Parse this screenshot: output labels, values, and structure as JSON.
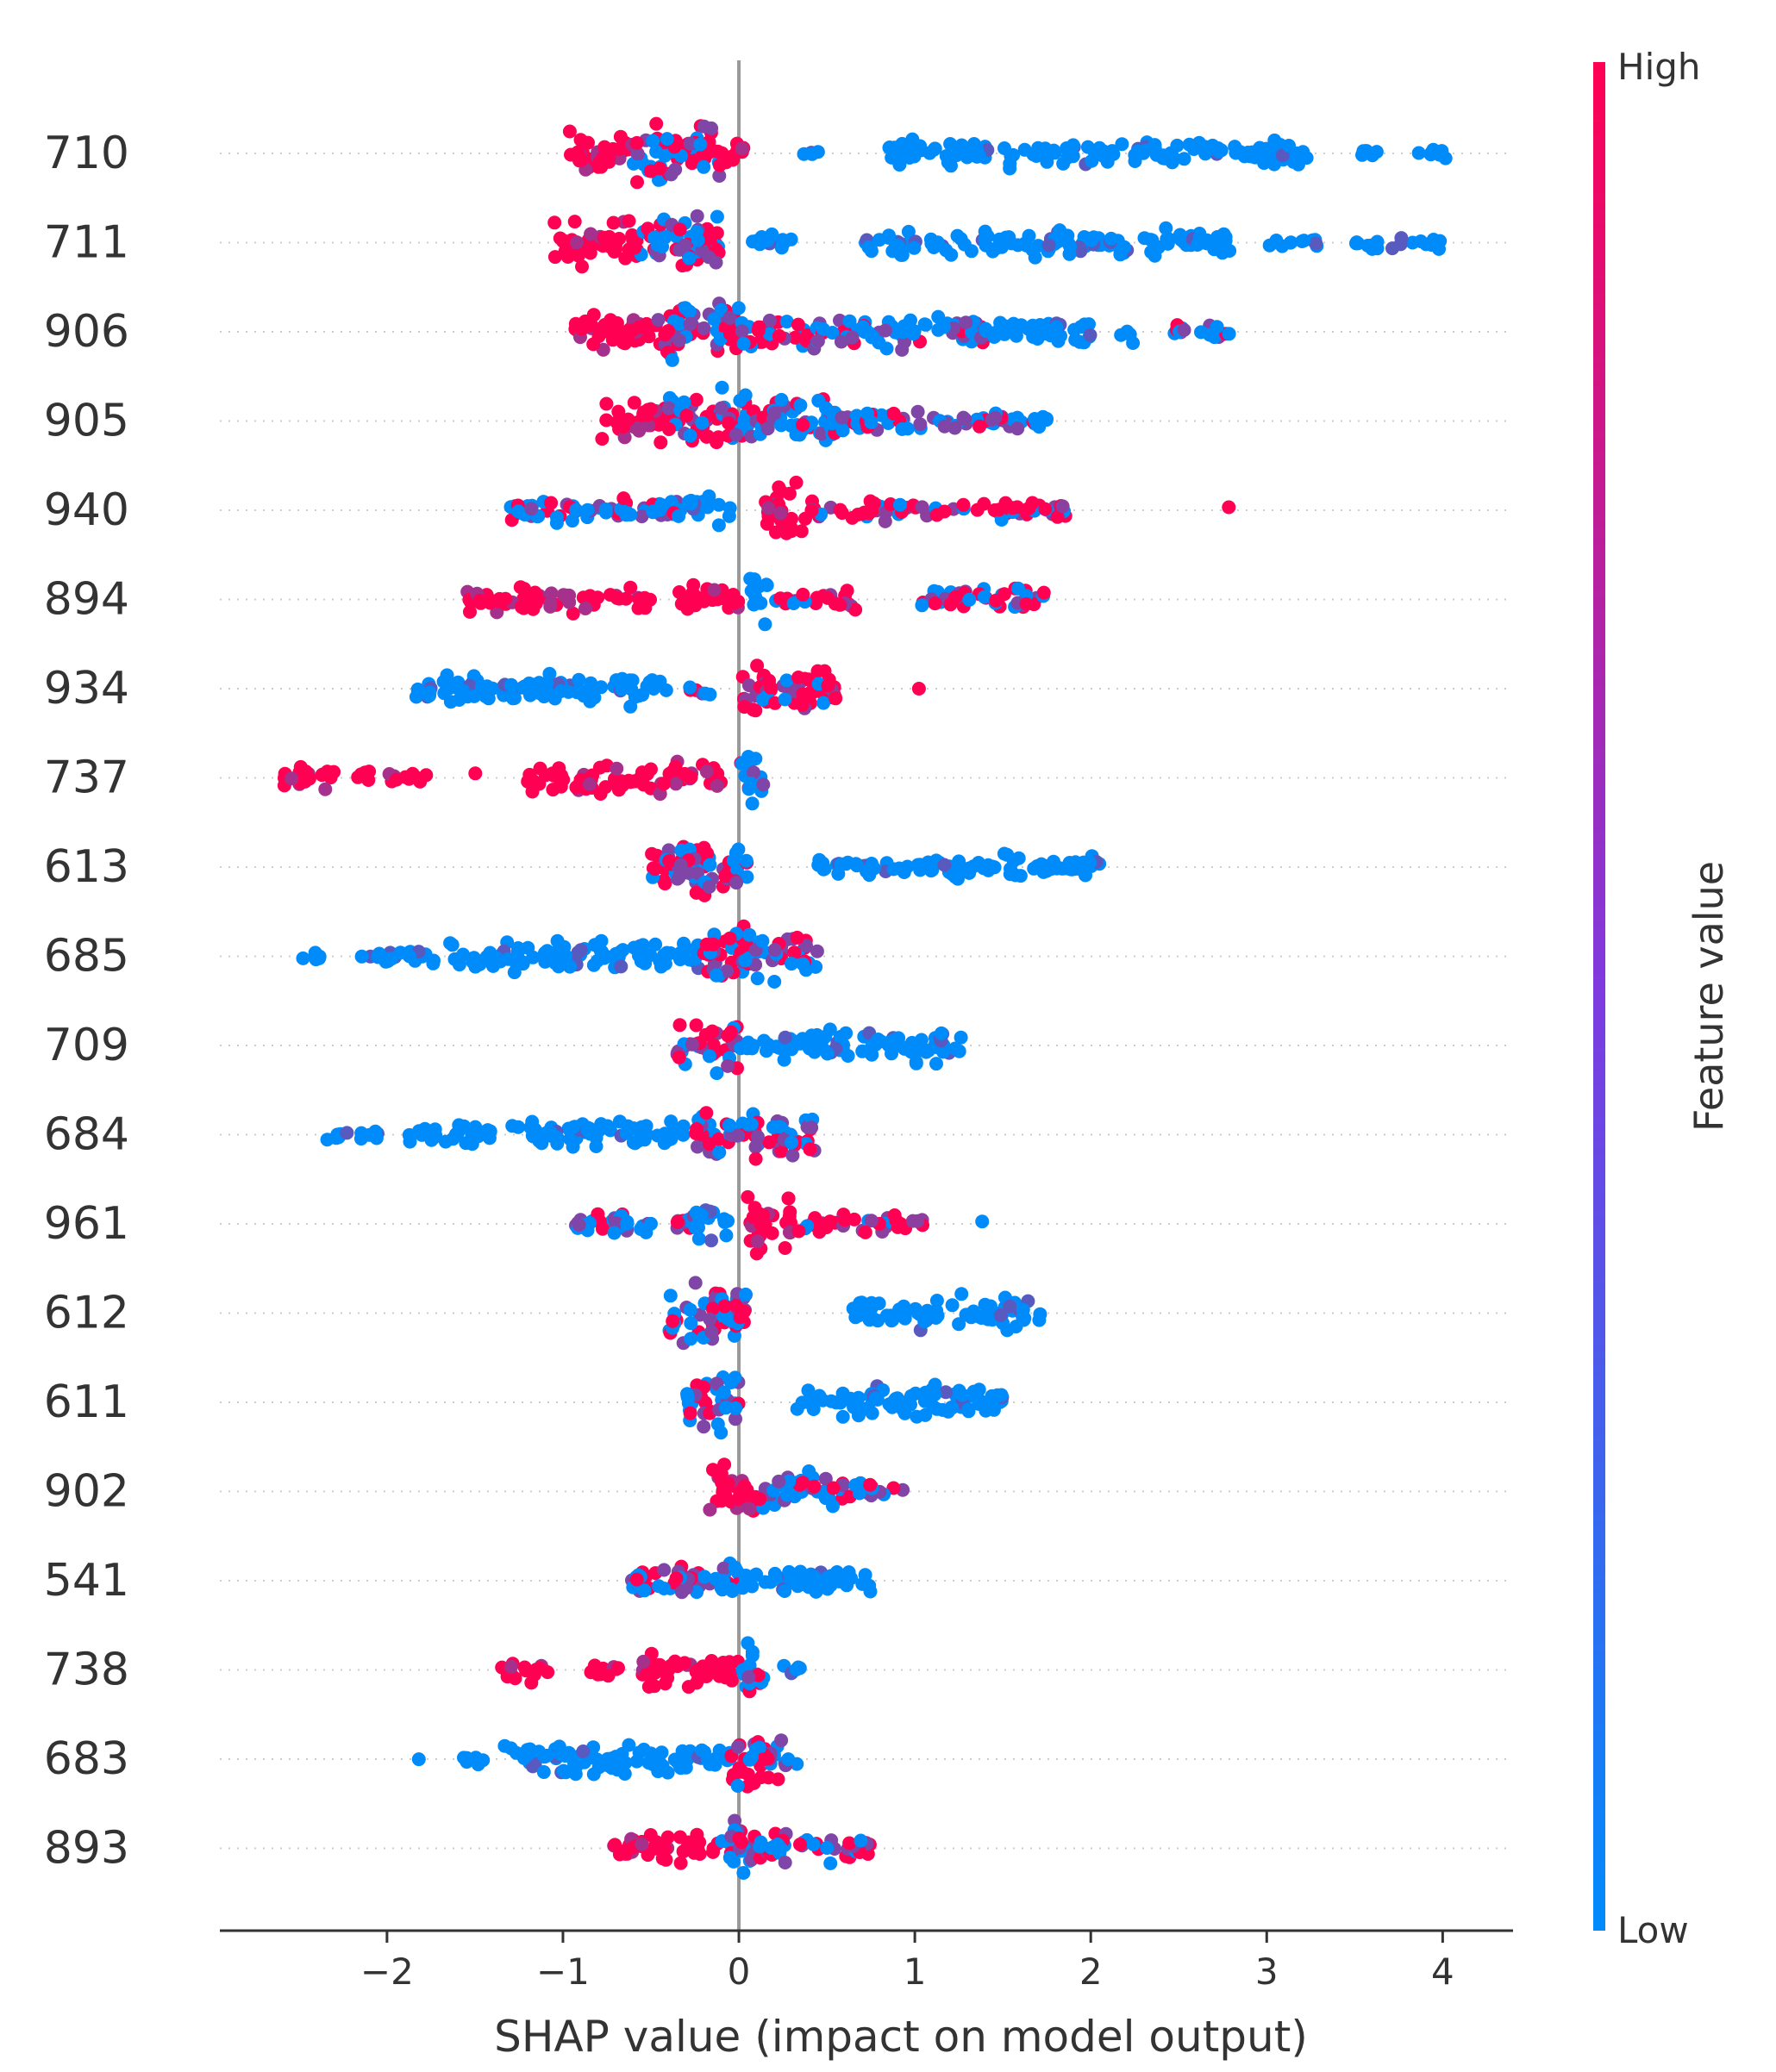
{
  "chart_data": {
    "type": "scatter",
    "subtype": "shap-beeswarm",
    "xlabel": "SHAP value (impact on model output)",
    "ylabel": "",
    "xlim": [
      -2.95,
      4.4
    ],
    "x_ticks": [
      {
        "value": -2,
        "label": "−2"
      },
      {
        "value": -1,
        "label": "−1"
      },
      {
        "value": 0,
        "label": "0"
      },
      {
        "value": 1,
        "label": "1"
      },
      {
        "value": 2,
        "label": "2"
      },
      {
        "value": 3,
        "label": "3"
      },
      {
        "value": 4,
        "label": "4"
      }
    ],
    "features": [
      "710",
      "711",
      "906",
      "905",
      "940",
      "894",
      "934",
      "737",
      "613",
      "685",
      "709",
      "684",
      "961",
      "612",
      "611",
      "902",
      "541",
      "738",
      "683",
      "893"
    ],
    "colorbar": {
      "title": "Feature value",
      "high_label": "High",
      "low_label": "Low",
      "high_color": "#ff0052",
      "low_color": "#008bfb"
    },
    "grid": false,
    "vertical_line_at": 0,
    "series": [
      {
        "feature": "710",
        "clusters": [
          {
            "from": -1.0,
            "to": -0.6,
            "color": "high",
            "density": 0.7
          },
          {
            "from": -0.6,
            "to": -0.1,
            "color": "mix",
            "density": 1.0
          },
          {
            "from": -0.1,
            "to": 0.05,
            "color": "high",
            "density": 0.4
          },
          {
            "from": 0.35,
            "to": 0.45,
            "color": "low",
            "density": 0.1
          },
          {
            "from": 0.85,
            "to": 3.25,
            "color": "low",
            "density": 0.35
          },
          {
            "from": 3.5,
            "to": 3.65,
            "color": "low",
            "density": 0.1
          },
          {
            "from": 3.85,
            "to": 4.05,
            "color": "low",
            "density": 0.1
          }
        ]
      },
      {
        "feature": "711",
        "clusters": [
          {
            "from": -1.05,
            "to": -0.6,
            "color": "high",
            "density": 0.7
          },
          {
            "from": -0.6,
            "to": -0.1,
            "color": "mix",
            "density": 0.95
          },
          {
            "from": 0.0,
            "to": 0.3,
            "color": "low",
            "density": 0.15
          },
          {
            "from": 0.72,
            "to": 2.8,
            "color": "low",
            "density": 0.35
          },
          {
            "from": 3.0,
            "to": 3.3,
            "color": "low",
            "density": 0.1
          },
          {
            "from": 3.5,
            "to": 4.0,
            "color": "low",
            "density": 0.1
          }
        ]
      },
      {
        "feature": "906",
        "clusters": [
          {
            "from": -0.95,
            "to": -0.5,
            "color": "high",
            "density": 0.6
          },
          {
            "from": -0.5,
            "to": 0.0,
            "color": "mix",
            "density": 1.0
          },
          {
            "from": 0.0,
            "to": 0.4,
            "color": "mix",
            "density": 0.5
          },
          {
            "from": 0.4,
            "to": 1.4,
            "color": "mixlow",
            "density": 0.45
          },
          {
            "from": 1.4,
            "to": 2.25,
            "color": "low",
            "density": 0.25
          },
          {
            "from": 2.4,
            "to": 2.8,
            "color": "mixlow",
            "density": 0.1
          }
        ]
      },
      {
        "feature": "905",
        "clusters": [
          {
            "from": -0.78,
            "to": -0.4,
            "color": "high",
            "density": 0.6
          },
          {
            "from": -0.4,
            "to": 0.1,
            "color": "mix",
            "density": 1.0
          },
          {
            "from": 0.1,
            "to": 0.55,
            "color": "mixlow",
            "density": 0.8
          },
          {
            "from": 0.55,
            "to": 1.75,
            "color": "mixlow",
            "density": 0.3
          }
        ]
      },
      {
        "feature": "940",
        "clusters": [
          {
            "from": -1.3,
            "to": -0.3,
            "color": "mixlow",
            "density": 0.35
          },
          {
            "from": -0.3,
            "to": -0.05,
            "color": "low",
            "density": 0.5
          },
          {
            "from": 0.15,
            "to": 0.4,
            "color": "high",
            "density": 1.0
          },
          {
            "from": 0.4,
            "to": 1.9,
            "color": "highmix",
            "density": 0.2
          },
          {
            "from": 2.78,
            "to": 2.78,
            "color": "high",
            "density": 0.05
          }
        ]
      },
      {
        "feature": "894",
        "clusters": [
          {
            "from": -1.55,
            "to": -0.5,
            "color": "high",
            "density": 0.35
          },
          {
            "from": -0.35,
            "to": 0.0,
            "color": "high",
            "density": 0.45
          },
          {
            "from": 0.05,
            "to": 0.2,
            "color": "low",
            "density": 0.8
          },
          {
            "from": 0.2,
            "to": 0.7,
            "color": "highmix",
            "density": 0.2
          },
          {
            "from": 1.0,
            "to": 1.75,
            "color": "mix",
            "density": 0.3
          }
        ]
      },
      {
        "feature": "934",
        "clusters": [
          {
            "from": -1.85,
            "to": -0.4,
            "color": "low",
            "density": 0.4
          },
          {
            "from": -0.3,
            "to": -0.15,
            "color": "mixlow",
            "density": 0.1
          },
          {
            "from": 0.0,
            "to": 0.55,
            "color": "highmix",
            "density": 0.8
          },
          {
            "from": 1.02,
            "to": 1.02,
            "color": "high",
            "density": 0.05
          }
        ]
      },
      {
        "feature": "737",
        "clusters": [
          {
            "from": -2.6,
            "to": -2.1,
            "color": "high",
            "density": 0.25
          },
          {
            "from": -2.0,
            "to": -1.75,
            "color": "high",
            "density": 0.1
          },
          {
            "from": -1.5,
            "to": -1.5,
            "color": "high",
            "density": 0.05
          },
          {
            "from": -1.2,
            "to": -0.1,
            "color": "high",
            "density": 0.45
          },
          {
            "from": 0.0,
            "to": 0.15,
            "color": "mixlow",
            "density": 0.8
          }
        ]
      },
      {
        "feature": "613",
        "clusters": [
          {
            "from": -0.5,
            "to": 0.05,
            "color": "mix",
            "density": 1.0
          },
          {
            "from": 0.45,
            "to": 2.05,
            "color": "low",
            "density": 0.3
          }
        ]
      },
      {
        "feature": "685",
        "clusters": [
          {
            "from": -2.5,
            "to": -2.35,
            "color": "low",
            "density": 0.1
          },
          {
            "from": -2.15,
            "to": -1.7,
            "color": "low",
            "density": 0.2
          },
          {
            "from": -1.65,
            "to": -0.2,
            "color": "low",
            "density": 0.45
          },
          {
            "from": -0.2,
            "to": 0.45,
            "color": "mix",
            "density": 0.9
          }
        ]
      },
      {
        "feature": "709",
        "clusters": [
          {
            "from": -0.35,
            "to": 0.0,
            "color": "highmix",
            "density": 0.9
          },
          {
            "from": 0.0,
            "to": 0.25,
            "color": "low",
            "density": 0.15
          },
          {
            "from": 0.25,
            "to": 1.3,
            "color": "low",
            "density": 0.45
          }
        ]
      },
      {
        "feature": "684",
        "clusters": [
          {
            "from": -2.35,
            "to": -2.05,
            "color": "low",
            "density": 0.1
          },
          {
            "from": -1.9,
            "to": -1.4,
            "color": "low",
            "density": 0.3
          },
          {
            "from": -1.3,
            "to": -0.25,
            "color": "low",
            "density": 0.4
          },
          {
            "from": -0.25,
            "to": 0.45,
            "color": "mix",
            "density": 0.85
          }
        ]
      },
      {
        "feature": "961",
        "clusters": [
          {
            "from": -1.0,
            "to": -0.25,
            "color": "mixlow",
            "density": 0.35
          },
          {
            "from": -0.25,
            "to": -0.05,
            "color": "low",
            "density": 0.6
          },
          {
            "from": 0.05,
            "to": 0.3,
            "color": "high",
            "density": 1.0
          },
          {
            "from": 0.3,
            "to": 1.05,
            "color": "highmix",
            "density": 0.25
          },
          {
            "from": 1.38,
            "to": 1.38,
            "color": "mix",
            "density": 0.05
          }
        ]
      },
      {
        "feature": "612",
        "clusters": [
          {
            "from": -0.4,
            "to": 0.05,
            "color": "mix",
            "density": 1.0
          },
          {
            "from": 0.65,
            "to": 1.72,
            "color": "low",
            "density": 0.45
          }
        ]
      },
      {
        "feature": "611",
        "clusters": [
          {
            "from": -0.3,
            "to": 0.0,
            "color": "mix",
            "density": 1.0
          },
          {
            "from": 0.3,
            "to": 1.5,
            "color": "low",
            "density": 0.45
          }
        ]
      },
      {
        "feature": "902",
        "clusters": [
          {
            "from": -0.2,
            "to": 0.1,
            "color": "high",
            "density": 0.9
          },
          {
            "from": 0.1,
            "to": 0.6,
            "color": "mixlow",
            "density": 0.6
          },
          {
            "from": 0.6,
            "to": 0.95,
            "color": "mix",
            "density": 0.15
          }
        ]
      },
      {
        "feature": "541",
        "clusters": [
          {
            "from": -0.65,
            "to": -0.15,
            "color": "mix",
            "density": 0.45
          },
          {
            "from": -0.15,
            "to": 0.0,
            "color": "mixlow",
            "density": 0.8
          },
          {
            "from": 0.0,
            "to": 0.75,
            "color": "low",
            "density": 0.4
          }
        ]
      },
      {
        "feature": "738",
        "clusters": [
          {
            "from": -1.35,
            "to": -1.05,
            "color": "high",
            "density": 0.3
          },
          {
            "from": -0.85,
            "to": -0.65,
            "color": "high",
            "density": 0.2
          },
          {
            "from": -0.55,
            "to": 0.0,
            "color": "high",
            "density": 0.6
          },
          {
            "from": 0.0,
            "to": 0.15,
            "color": "mixlow",
            "density": 0.8
          },
          {
            "from": 0.25,
            "to": 0.38,
            "color": "low",
            "density": 0.1
          }
        ]
      },
      {
        "feature": "683",
        "clusters": [
          {
            "from": -1.82,
            "to": -1.82,
            "color": "low",
            "density": 0.05
          },
          {
            "from": -1.6,
            "to": -1.45,
            "color": "low",
            "density": 0.1
          },
          {
            "from": -1.35,
            "to": -0.05,
            "color": "low",
            "density": 0.45
          },
          {
            "from": -0.05,
            "to": 0.35,
            "color": "mix",
            "density": 0.85
          }
        ]
      },
      {
        "feature": "893",
        "clusters": [
          {
            "from": -0.72,
            "to": -0.1,
            "color": "high",
            "density": 0.5
          },
          {
            "from": -0.1,
            "to": 0.1,
            "color": "mixlow",
            "density": 0.9
          },
          {
            "from": 0.1,
            "to": 0.78,
            "color": "mix",
            "density": 0.4
          }
        ]
      }
    ]
  }
}
